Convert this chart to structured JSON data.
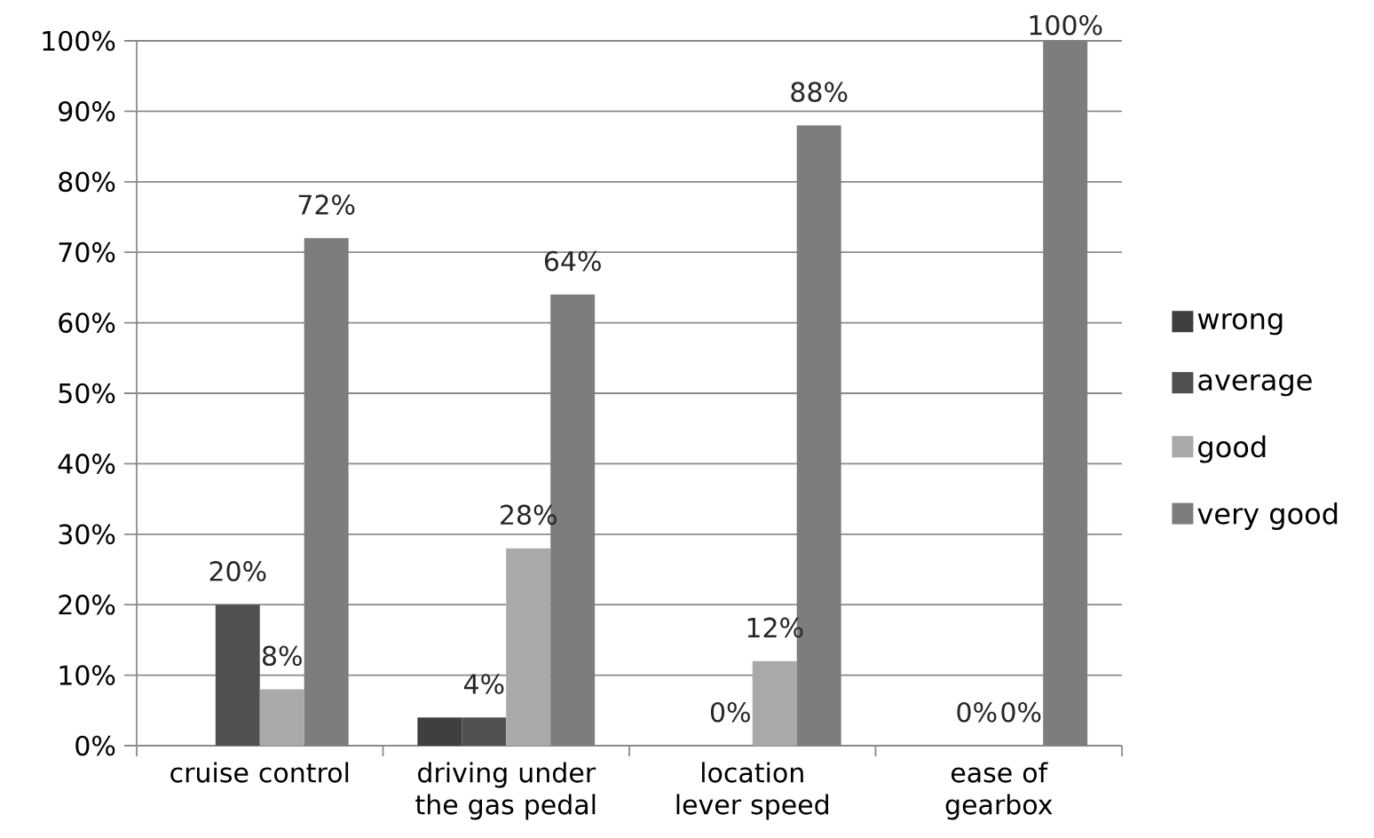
{
  "chart_data": {
    "type": "bar",
    "categories": [
      "cruise control",
      "driving under the gas pedal",
      "location lever speed",
      "ease of gearbox"
    ],
    "series": [
      {
        "name": "wrong",
        "color": "#3f3f3f",
        "values": [
          null,
          4,
          null,
          null
        ]
      },
      {
        "name": "average",
        "color": "#505050",
        "values": [
          20,
          4,
          0,
          0
        ],
        "value_labels": [
          "20%",
          "4%",
          "0%",
          "0%"
        ]
      },
      {
        "name": "good",
        "color": "#a9a9a9",
        "values": [
          8,
          28,
          12,
          0
        ],
        "value_labels": [
          "8%",
          "28%",
          "12%",
          "0%"
        ]
      },
      {
        "name": "very good",
        "color": "#7d7d7d",
        "values": [
          72,
          64,
          88,
          100
        ],
        "value_labels": [
          "72%",
          "64%",
          "88%",
          "100%"
        ]
      }
    ],
    "ylim": [
      0,
      100
    ],
    "yticks": [
      {
        "value": 0,
        "label": "0%"
      },
      {
        "value": 10,
        "label": "10%"
      },
      {
        "value": 20,
        "label": "20%"
      },
      {
        "value": 30,
        "label": "30%"
      },
      {
        "value": 40,
        "label": "40%"
      },
      {
        "value": 50,
        "label": "50%"
      },
      {
        "value": 60,
        "label": "60%"
      },
      {
        "value": 70,
        "label": "70%"
      },
      {
        "value": 80,
        "label": "80%"
      },
      {
        "value": 90,
        "label": "90%"
      },
      {
        "value": 100,
        "label": "100%"
      }
    ],
    "grid": "y",
    "legend": "right"
  }
}
